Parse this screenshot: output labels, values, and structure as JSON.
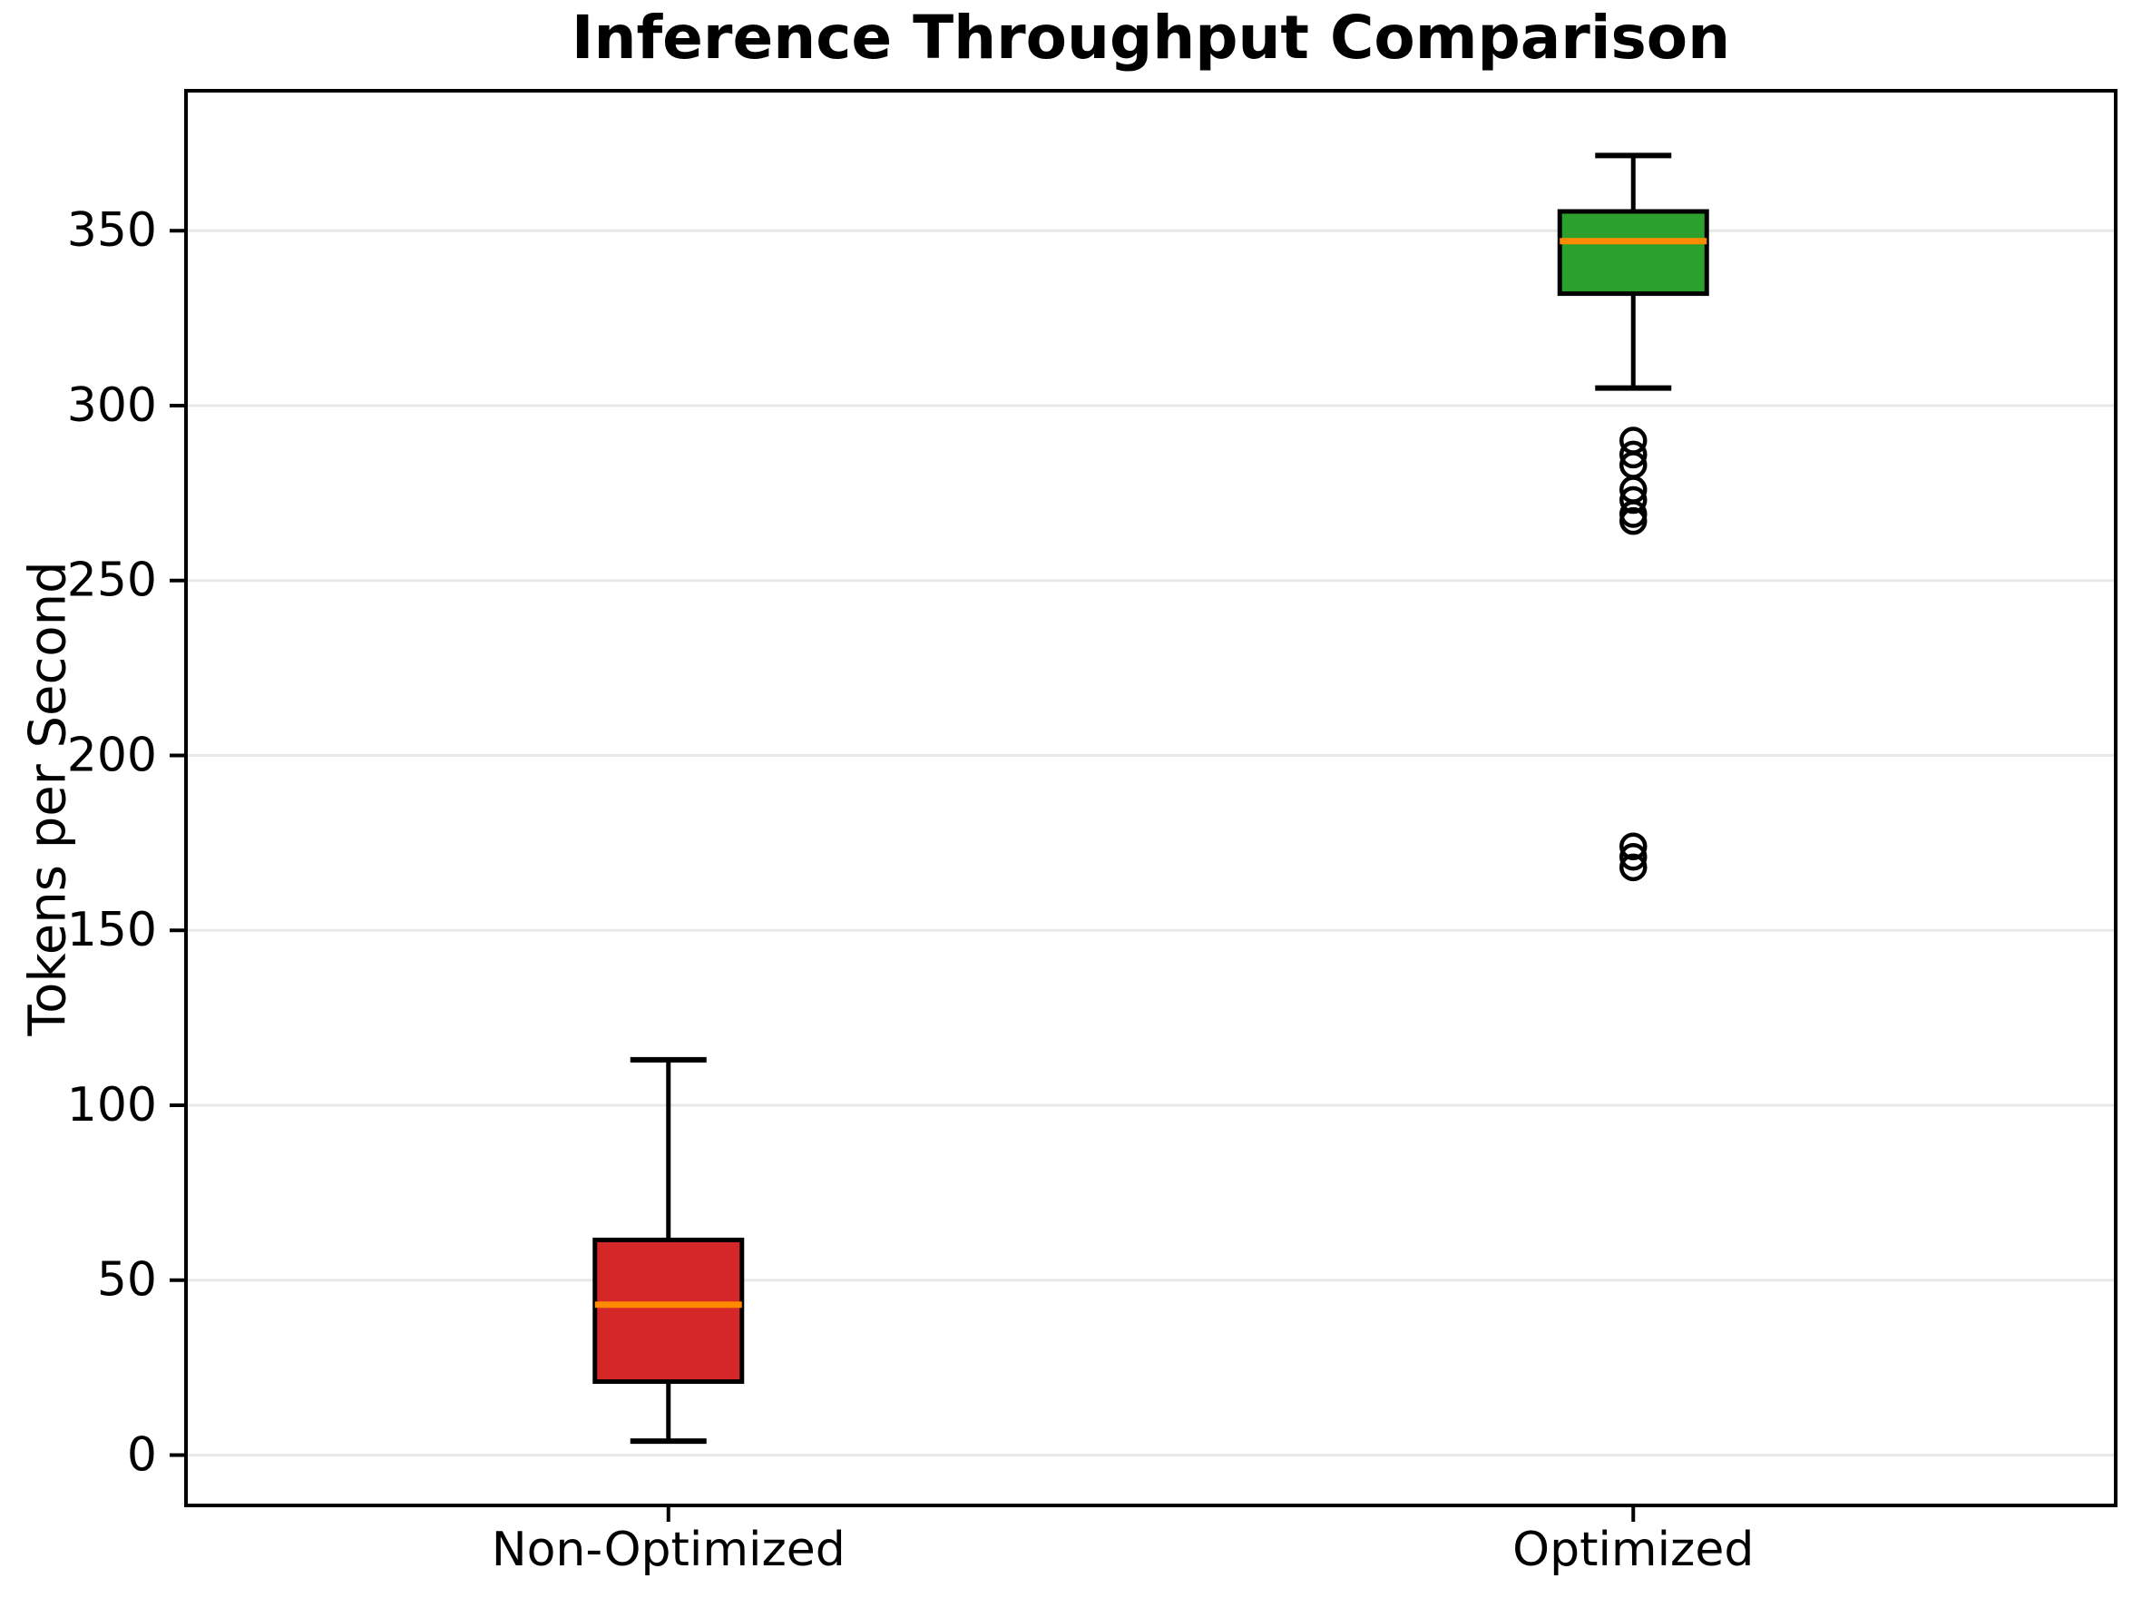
{
  "chart_data": {
    "type": "boxplot",
    "title": "Inference Throughput Comparison",
    "ylabel": "Tokens per Second",
    "xlabel": "",
    "categories": [
      "Non-Optimized",
      "Optimized"
    ],
    "ylim": [
      -14.4,
      390
    ],
    "yticks": [
      0,
      50,
      100,
      150,
      200,
      250,
      300,
      350
    ],
    "grid": "horizontal-gridlines-on",
    "legend": "none",
    "series": [
      {
        "name": "Non-Optimized",
        "whisker_low": 4,
        "q1": 21,
        "median": 43,
        "q3": 61.5,
        "whisker_high": 113,
        "outliers": [],
        "box_color": "#d62728"
      },
      {
        "name": "Optimized",
        "whisker_low": 305,
        "q1": 332,
        "median": 347,
        "q3": 355.5,
        "whisker_high": 371.5,
        "outliers": [
          290,
          286,
          283,
          276,
          273,
          269,
          267,
          174,
          171,
          168
        ],
        "box_color": "#2ca02c"
      }
    ],
    "colors": {
      "median_line": "#ff8c00",
      "box_edge": "#000000",
      "whisker": "#000000",
      "outlier_edge": "#000000",
      "gridline": "#e8e8e8",
      "axis": "#000000",
      "background": "#ffffff"
    }
  }
}
